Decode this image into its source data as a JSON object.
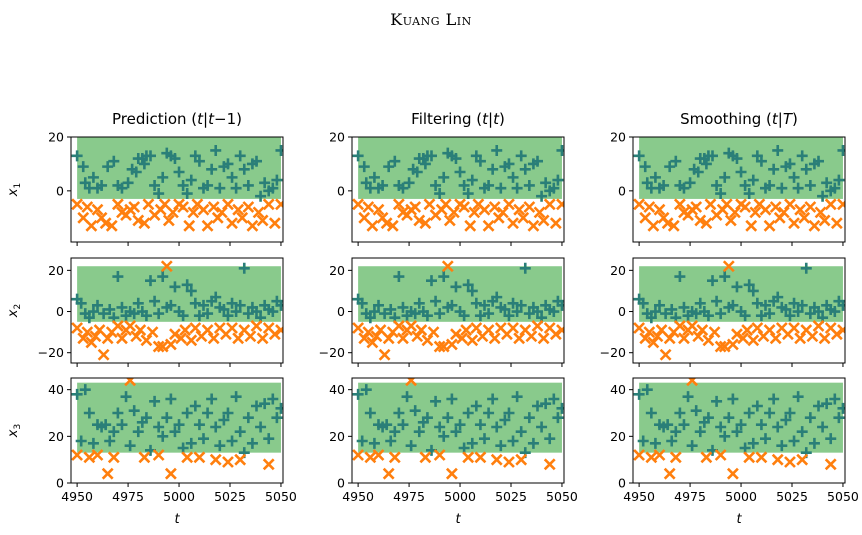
{
  "header": {
    "running_head": "Kuang Lin"
  },
  "chart_data": {
    "type": "scatter",
    "columns": [
      "Prediction (t|t−1)",
      "Filtering (t|t)",
      "Smoothing (t|T)"
    ],
    "column_title_parts": [
      {
        "pre": "Prediction (",
        "it": "t",
        "sep": "|",
        "it2": "t",
        "post": "−1)"
      },
      {
        "pre": "Filtering (",
        "it": "t",
        "sep": "|",
        "it2": "t",
        "post": ")"
      },
      {
        "pre": "Smoothing (",
        "it": "t",
        "sep": "|",
        "it2": "T",
        "post": ")"
      }
    ],
    "xlabel": "t",
    "xlim": [
      4947,
      5051
    ],
    "xticks": [
      "4950",
      "4975",
      "5000",
      "5025",
      "5050"
    ],
    "colors": {
      "band": "#7cc47f",
      "in_marker": "#2a7f78",
      "out_marker": "#ff7f0e",
      "line": "#1f77b4"
    },
    "rows": [
      {
        "ylabel": "x1",
        "ylabel_base": "x",
        "ylabel_sub": "1",
        "ylim": [
          -19,
          20
        ],
        "yticks": [
          "0",
          "20"
        ],
        "ytick_values": [
          0,
          20
        ],
        "band": [
          -3,
          20
        ],
        "in_points": [
          [
            4950,
            13
          ],
          [
            4953,
            9
          ],
          [
            4954,
            3
          ],
          [
            4956,
            1
          ],
          [
            4958,
            5
          ],
          [
            4960,
            1
          ],
          [
            4962,
            2
          ],
          [
            4965,
            9
          ],
          [
            4968,
            11
          ],
          [
            4970,
            2
          ],
          [
            4972,
            1
          ],
          [
            4975,
            3
          ],
          [
            4977,
            8
          ],
          [
            4979,
            7
          ],
          [
            4980,
            12
          ],
          [
            4982,
            12
          ],
          [
            4983,
            10
          ],
          [
            4984,
            13
          ],
          [
            4986,
            13
          ],
          [
            4988,
            2
          ],
          [
            4990,
            -1
          ],
          [
            4992,
            5
          ],
          [
            4994,
            14
          ],
          [
            4996,
            13
          ],
          [
            4998,
            12
          ],
          [
            5000,
            7
          ],
          [
            5002,
            2
          ],
          [
            5004,
            -1
          ],
          [
            5006,
            4
          ],
          [
            5008,
            13
          ],
          [
            5010,
            11
          ],
          [
            5012,
            1
          ],
          [
            5014,
            2
          ],
          [
            5016,
            8
          ],
          [
            5018,
            15
          ],
          [
            5020,
            1
          ],
          [
            5022,
            9
          ],
          [
            5024,
            10
          ],
          [
            5026,
            5
          ],
          [
            5028,
            1
          ],
          [
            5030,
            13
          ],
          [
            5032,
            8
          ],
          [
            5034,
            2
          ],
          [
            5036,
            10
          ],
          [
            5038,
            11
          ],
          [
            5040,
            -2
          ],
          [
            5042,
            3
          ],
          [
            5044,
            0
          ],
          [
            5046,
            1
          ],
          [
            5048,
            4
          ],
          [
            5050,
            15
          ]
        ],
        "out_points": [
          [
            4950,
            -5
          ],
          [
            4953,
            -10
          ],
          [
            4955,
            -6
          ],
          [
            4957,
            -13
          ],
          [
            4960,
            -7
          ],
          [
            4962,
            -10
          ],
          [
            4964,
            -12
          ],
          [
            4967,
            -13
          ],
          [
            4970,
            -5
          ],
          [
            4972,
            -8
          ],
          [
            4974,
            -9
          ],
          [
            4976,
            -7
          ],
          [
            4978,
            -6
          ],
          [
            4980,
            -11
          ],
          [
            4983,
            -12
          ],
          [
            4985,
            -5
          ],
          [
            4988,
            -9
          ],
          [
            4991,
            -7
          ],
          [
            4993,
            -5
          ],
          [
            4995,
            -11
          ],
          [
            4997,
            -8
          ],
          [
            5000,
            -5
          ],
          [
            5002,
            -6
          ],
          [
            5005,
            -13
          ],
          [
            5007,
            -8
          ],
          [
            5009,
            -5
          ],
          [
            5012,
            -7
          ],
          [
            5014,
            -13
          ],
          [
            5017,
            -6
          ],
          [
            5019,
            -10
          ],
          [
            5021,
            -8
          ],
          [
            5024,
            -5
          ],
          [
            5026,
            -12
          ],
          [
            5029,
            -7
          ],
          [
            5031,
            -10
          ],
          [
            5034,
            -6
          ],
          [
            5036,
            -13
          ],
          [
            5039,
            -8
          ],
          [
            5041,
            -11
          ],
          [
            5044,
            -5
          ],
          [
            5047,
            -12
          ],
          [
            5050,
            -5
          ]
        ]
      },
      {
        "ylabel": "x2",
        "ylabel_base": "x",
        "ylabel_sub": "2",
        "ylim": [
          -25,
          26
        ],
        "yticks": [
          "−20",
          "0",
          "20"
        ],
        "ytick_values": [
          -20,
          0,
          20
        ],
        "band": [
          -5,
          22
        ],
        "in_points": [
          [
            4950,
            6
          ],
          [
            4952,
            4
          ],
          [
            4954,
            -1
          ],
          [
            4956,
            -3
          ],
          [
            4958,
            0
          ],
          [
            4960,
            3
          ],
          [
            4963,
            -1
          ],
          [
            4966,
            1
          ],
          [
            4968,
            -3
          ],
          [
            4970,
            17
          ],
          [
            4972,
            2
          ],
          [
            4974,
            -2
          ],
          [
            4976,
            0
          ],
          [
            4978,
            -1
          ],
          [
            4980,
            4
          ],
          [
            4982,
            0
          ],
          [
            4984,
            -2
          ],
          [
            4986,
            15
          ],
          [
            4988,
            5
          ],
          [
            4990,
            -1
          ],
          [
            4992,
            17
          ],
          [
            4994,
            2
          ],
          [
            4996,
            3
          ],
          [
            4998,
            12
          ],
          [
            5000,
            0
          ],
          [
            5002,
            -2
          ],
          [
            5004,
            13
          ],
          [
            5006,
            10
          ],
          [
            5008,
            4
          ],
          [
            5010,
            -2
          ],
          [
            5012,
            3
          ],
          [
            5014,
            -1
          ],
          [
            5016,
            5
          ],
          [
            5018,
            7
          ],
          [
            5020,
            2
          ],
          [
            5022,
            1
          ],
          [
            5024,
            -2
          ],
          [
            5026,
            4
          ],
          [
            5028,
            0
          ],
          [
            5030,
            3
          ],
          [
            5032,
            21
          ],
          [
            5034,
            -1
          ],
          [
            5036,
            2
          ],
          [
            5038,
            0
          ],
          [
            5040,
            -3
          ],
          [
            5042,
            3
          ],
          [
            5044,
            1
          ],
          [
            5046,
            0
          ],
          [
            5048,
            5
          ],
          [
            5050,
            3
          ]
        ],
        "out_points": [
          [
            4950,
            -8
          ],
          [
            4953,
            -13
          ],
          [
            4955,
            -10
          ],
          [
            4957,
            -15
          ],
          [
            4959,
            -12
          ],
          [
            4961,
            -9
          ],
          [
            4963,
            -21
          ],
          [
            4965,
            -13
          ],
          [
            4967,
            -10
          ],
          [
            4970,
            -7
          ],
          [
            4972,
            -13
          ],
          [
            4974,
            -9
          ],
          [
            4976,
            -7
          ],
          [
            4979,
            -12
          ],
          [
            4981,
            -9
          ],
          [
            4984,
            -14
          ],
          [
            4987,
            -10
          ],
          [
            4990,
            -17
          ],
          [
            4992,
            -17
          ],
          [
            4994,
            22
          ],
          [
            4996,
            -16
          ],
          [
            4998,
            -11
          ],
          [
            5001,
            -13
          ],
          [
            5003,
            -9
          ],
          [
            5006,
            -14
          ],
          [
            5008,
            -8
          ],
          [
            5011,
            -12
          ],
          [
            5014,
            -9
          ],
          [
            5017,
            -13
          ],
          [
            5020,
            -8
          ],
          [
            5023,
            -11
          ],
          [
            5026,
            -8
          ],
          [
            5029,
            -13
          ],
          [
            5032,
            -9
          ],
          [
            5035,
            -12
          ],
          [
            5038,
            -7
          ],
          [
            5041,
            -13
          ],
          [
            5044,
            -8
          ],
          [
            5047,
            -11
          ],
          [
            5050,
            -9
          ]
        ]
      },
      {
        "ylabel": "x3",
        "ylabel_base": "x",
        "ylabel_sub": "3",
        "ylim": [
          0,
          45
        ],
        "yticks": [
          "0",
          "20",
          "40"
        ],
        "ytick_values": [
          0,
          20,
          40
        ],
        "band": [
          13,
          43
        ],
        "in_points": [
          [
            4950,
            38
          ],
          [
            4952,
            18
          ],
          [
            4954,
            40
          ],
          [
            4956,
            30
          ],
          [
            4958,
            17
          ],
          [
            4960,
            25
          ],
          [
            4962,
            24
          ],
          [
            4964,
            25
          ],
          [
            4966,
            18
          ],
          [
            4968,
            22
          ],
          [
            4970,
            30
          ],
          [
            4972,
            25
          ],
          [
            4974,
            37
          ],
          [
            4976,
            16
          ],
          [
            4978,
            31
          ],
          [
            4980,
            22
          ],
          [
            4982,
            26
          ],
          [
            4984,
            28
          ],
          [
            4986,
            14
          ],
          [
            4988,
            35
          ],
          [
            4990,
            24
          ],
          [
            4992,
            20
          ],
          [
            4994,
            28
          ],
          [
            4996,
            36
          ],
          [
            4998,
            22
          ],
          [
            5000,
            25
          ],
          [
            5002,
            15
          ],
          [
            5004,
            30
          ],
          [
            5006,
            17
          ],
          [
            5008,
            33
          ],
          [
            5010,
            25
          ],
          [
            5012,
            19
          ],
          [
            5014,
            30
          ],
          [
            5016,
            36
          ],
          [
            5018,
            24
          ],
          [
            5020,
            16
          ],
          [
            5022,
            27
          ],
          [
            5024,
            30
          ],
          [
            5026,
            18
          ],
          [
            5028,
            37
          ],
          [
            5030,
            22
          ],
          [
            5032,
            13
          ],
          [
            5034,
            28
          ],
          [
            5036,
            17
          ],
          [
            5038,
            33
          ],
          [
            5040,
            24
          ],
          [
            5042,
            34
          ],
          [
            5044,
            19
          ],
          [
            5046,
            36
          ],
          [
            5048,
            28
          ],
          [
            5050,
            32
          ]
        ],
        "out_points": [
          [
            4950,
            12
          ],
          [
            4956,
            11
          ],
          [
            4960,
            12
          ],
          [
            4965,
            4
          ],
          [
            4968,
            11
          ],
          [
            4976,
            44
          ],
          [
            4983,
            11
          ],
          [
            4990,
            12
          ],
          [
            4996,
            4
          ],
          [
            5004,
            11
          ],
          [
            5010,
            11
          ],
          [
            5018,
            10
          ],
          [
            5024,
            9
          ],
          [
            5030,
            10
          ],
          [
            5044,
            8
          ]
        ]
      }
    ]
  }
}
